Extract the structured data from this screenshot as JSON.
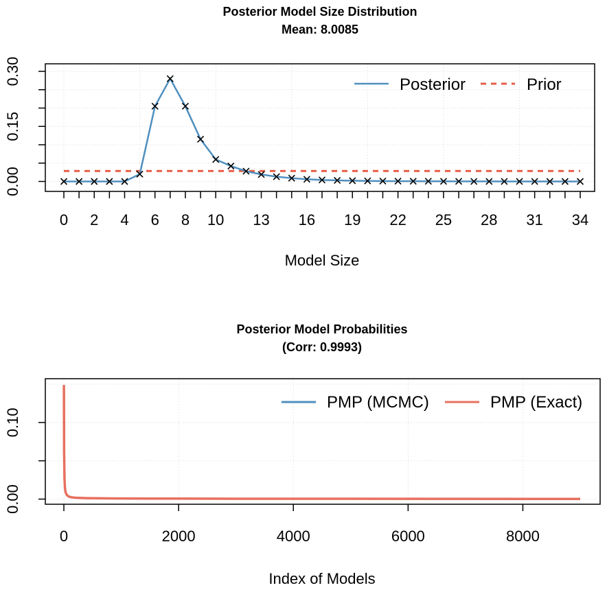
{
  "colors": {
    "posterior": "#4f8fbf",
    "prior": "#e65e46",
    "pmp_mcmc": "#4f8fbf",
    "pmp_exact": "#e8705f",
    "marker": "#000000"
  },
  "chart_data": [
    {
      "type": "line",
      "title": "Posterior Model Size Distribution",
      "subtitle": "Mean: 8.0085",
      "xlabel": "Model Size",
      "ylabel": "",
      "xlim": [
        0,
        34
      ],
      "ylim": [
        0,
        0.3
      ],
      "x": [
        0,
        1,
        2,
        3,
        4,
        5,
        6,
        7,
        8,
        9,
        10,
        11,
        12,
        13,
        14,
        15,
        16,
        17,
        18,
        19,
        20,
        21,
        22,
        23,
        24,
        25,
        26,
        27,
        28,
        29,
        30,
        31,
        32,
        33,
        34
      ],
      "x_tick_labels": [
        "0",
        "2",
        "4",
        "6",
        "8",
        "10",
        "13",
        "16",
        "19",
        "22",
        "25",
        "28",
        "31",
        "34"
      ],
      "x_tick_values": [
        0,
        2,
        4,
        6,
        8,
        10,
        13,
        16,
        19,
        22,
        25,
        28,
        31,
        34
      ],
      "y_tick_labels": [
        "0.00",
        "0.15",
        "0.30"
      ],
      "y_tick_values": [
        0,
        0.15,
        0.3
      ],
      "grid": true,
      "legend_position": "top-right",
      "series": [
        {
          "name": "Posterior",
          "style": "solid",
          "markers": "x",
          "values": [
            0,
            0,
            0,
            0,
            0,
            0.02,
            0.205,
            0.28,
            0.205,
            0.115,
            0.06,
            0.042,
            0.028,
            0.019,
            0.013,
            0.009,
            0.006,
            0.004,
            0.003,
            0.002,
            0.0015,
            0.001,
            0.0008,
            0.0006,
            0.0005,
            0.0004,
            0.0003,
            0.0002,
            0.0002,
            0.0001,
            0.0001,
            0.0001,
            0,
            0,
            0
          ]
        },
        {
          "name": "Prior",
          "style": "dashed",
          "values": [
            0.0286,
            0.0286,
            0.0286,
            0.0286,
            0.0286,
            0.0286,
            0.0286,
            0.0286,
            0.0286,
            0.0286,
            0.0286,
            0.0286,
            0.0286,
            0.0286,
            0.0286,
            0.0286,
            0.0286,
            0.0286,
            0.0286,
            0.0286,
            0.0286,
            0.0286,
            0.0286,
            0.0286,
            0.0286,
            0.0286,
            0.0286,
            0.0286,
            0.0286,
            0.0286,
            0.0286,
            0.0286,
            0.0286,
            0.0286,
            0.0286
          ]
        }
      ]
    },
    {
      "type": "line",
      "title": "Posterior Model Probabilities",
      "subtitle": "(Corr: 0.9993)",
      "xlabel": "Index of Models",
      "ylabel": "",
      "xlim": [
        0,
        9000
      ],
      "ylim": [
        0,
        0.15
      ],
      "x_tick_labels": [
        "0",
        "2000",
        "4000",
        "6000",
        "8000"
      ],
      "x_tick_values": [
        0,
        2000,
        4000,
        6000,
        8000
      ],
      "y_tick_labels": [
        "0.00",
        "0.10"
      ],
      "y_tick_values": [
        0,
        0.1
      ],
      "grid": true,
      "legend_position": "top-right",
      "series": [
        {
          "name": "PMP (MCMC)",
          "x": [
            1,
            2,
            3,
            5,
            8,
            12,
            20,
            30,
            50,
            80,
            120,
            200,
            400,
            800,
            1500,
            3000,
            5000,
            7000,
            9000
          ],
          "values": [
            0.148,
            0.12,
            0.09,
            0.06,
            0.04,
            0.025,
            0.014,
            0.009,
            0.0055,
            0.0035,
            0.0025,
            0.0018,
            0.0012,
            0.0009,
            0.0007,
            0.0005,
            0.0004,
            0.0003,
            0.0002
          ]
        },
        {
          "name": "PMP (Exact)",
          "x": [
            1,
            2,
            3,
            5,
            8,
            12,
            20,
            30,
            50,
            80,
            120,
            200,
            400,
            800,
            1500,
            3000,
            5000,
            7000,
            9000
          ],
          "values": [
            0.149,
            0.121,
            0.091,
            0.061,
            0.041,
            0.025,
            0.014,
            0.009,
            0.0055,
            0.0035,
            0.0025,
            0.0018,
            0.0012,
            0.0009,
            0.0007,
            0.0005,
            0.0004,
            0.0003,
            0.0002
          ]
        }
      ]
    }
  ]
}
